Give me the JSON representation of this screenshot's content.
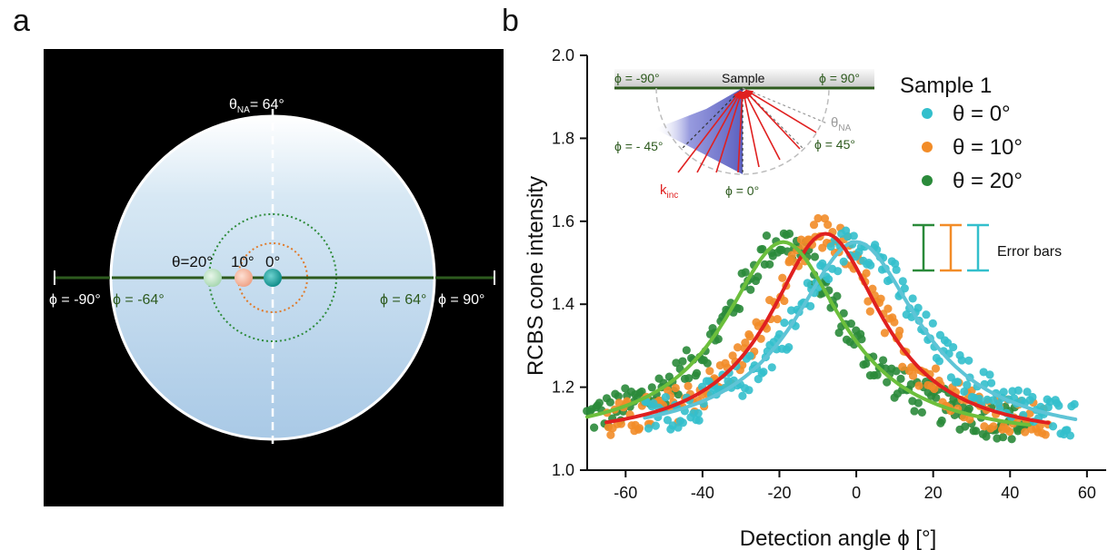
{
  "panels": {
    "a": "a",
    "b": "b"
  },
  "panel_a": {
    "na_label": "θNA= 64°",
    "na_main": "θ",
    "na_sub": "NA",
    "na_rest": "= 64°",
    "phi_left_outer": "ϕ = -90°",
    "phi_left_inner": "ϕ = -64°",
    "phi_right_inner": "ϕ = 64°",
    "phi_right_outer": "ϕ = 90°",
    "theta_labels": [
      "θ=20°",
      "10°",
      "0°"
    ],
    "colors": {
      "dot_20": "#bfe3c7",
      "dot_10": "#f6b9a3",
      "dot_0": "#1ba9a6",
      "ring_20": "#2e8b3a",
      "ring_10": "#e07a2a",
      "axis": "#2d5a1e"
    }
  },
  "inset": {
    "sample": "Sample",
    "phi_m90": "ϕ = -90°",
    "phi_90": "ϕ = 90°",
    "phi_m45": "ϕ = - 45°",
    "phi_45": "ϕ = 45°",
    "phi_0": "ϕ = 0°",
    "k_main": "k",
    "k_sub": "inc",
    "t_main": "θ",
    "t_sub": "NA"
  },
  "chart_data": {
    "type": "scatter",
    "xlabel": "Detection angle ϕ [°]",
    "ylabel": "RCBS cone intensity",
    "xlim": [
      -70,
      65
    ],
    "ylim": [
      1.0,
      2.0
    ],
    "x_ticks": [
      -60,
      -40,
      -20,
      0,
      20,
      40,
      60
    ],
    "y_ticks": [
      "1.0",
      "1.2",
      "1.4",
      "1.6",
      "1.8",
      "2.0"
    ],
    "legend_title": "Sample 1",
    "error_bars_label": "Error bars",
    "series": [
      {
        "name": "θ =  0°",
        "color": "#33bfcc",
        "fit_color": "#5ec4d6",
        "center": 0,
        "peak": 0.48,
        "width": 20,
        "x_range": [
          -55,
          57
        ]
      },
      {
        "name": "θ = 10°",
        "color": "#f28c28",
        "fit_color": "#e02020",
        "center": -8,
        "peak": 0.5,
        "width": 18,
        "x_range": [
          -65,
          50
        ]
      },
      {
        "name": "θ = 20°",
        "color": "#2a8a3a",
        "fit_color": "#6cbf3c",
        "center": -19,
        "peak": 0.48,
        "width": 19,
        "x_range": [
          -70,
          45
        ]
      }
    ]
  }
}
